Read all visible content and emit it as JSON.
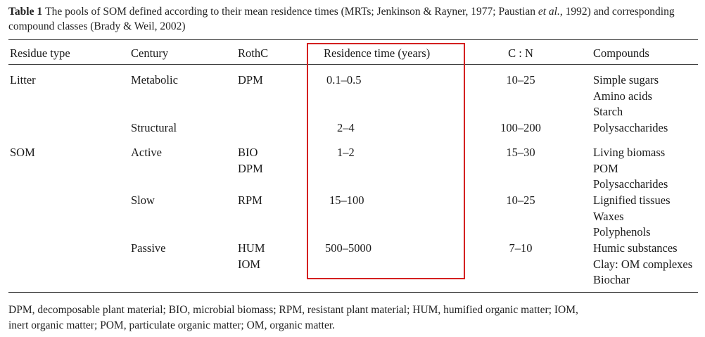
{
  "caption": {
    "label": "Table 1",
    "text_a": "The pools of SOM defined according to their mean residence times (MRTs; Jenkinson & Rayner, 1977; Paustian ",
    "et_al": "et al.",
    "text_b": ", 1992) and corresponding compound classes (Brady & Weil, 2002)"
  },
  "headers": {
    "residue": "Residue type",
    "century": "Century",
    "rothc": "RothC",
    "residence": "Residence time (years)",
    "cn": "C : N",
    "compounds": "Compounds"
  },
  "rows": {
    "litter": {
      "residue": "Litter",
      "metabolic": {
        "century": "Metabolic",
        "rothc": "DPM",
        "residence": "0.1–0.5",
        "cn": "10–25",
        "compounds": [
          "Simple sugars",
          "Amino acids",
          "Starch"
        ]
      },
      "structural": {
        "century": "Structural",
        "residence": "2–4",
        "cn": "100–200",
        "compounds": [
          "Polysaccharides"
        ]
      }
    },
    "som": {
      "residue": "SOM",
      "active": {
        "century": "Active",
        "rothc": [
          "BIO",
          "DPM"
        ],
        "residence": "1–2",
        "cn": "15–30",
        "compounds": [
          "Living biomass",
          "POM",
          "Polysaccharides"
        ]
      },
      "slow": {
        "century": "Slow",
        "rothc": "RPM",
        "residence": "15–100",
        "cn": "10–25",
        "compounds": [
          "Lignified tissues",
          "Waxes",
          "Polyphenols"
        ]
      },
      "passive": {
        "century": "Passive",
        "rothc": [
          "HUM",
          "IOM"
        ],
        "residence": "500–5000",
        "cn": "7–10",
        "compounds": [
          "Humic substances",
          "Clay: OM complexes",
          "Biochar"
        ]
      }
    }
  },
  "footnote": {
    "line1": "DPM, decomposable plant material; BIO, microbial biomass; RPM, resistant plant material; HUM, humified organic matter; IOM,",
    "line2": "inert organic matter; POM, particulate organic matter; OM, organic matter."
  },
  "colors": {
    "highlight": "#d42020",
    "text": "#1a1a1a"
  }
}
